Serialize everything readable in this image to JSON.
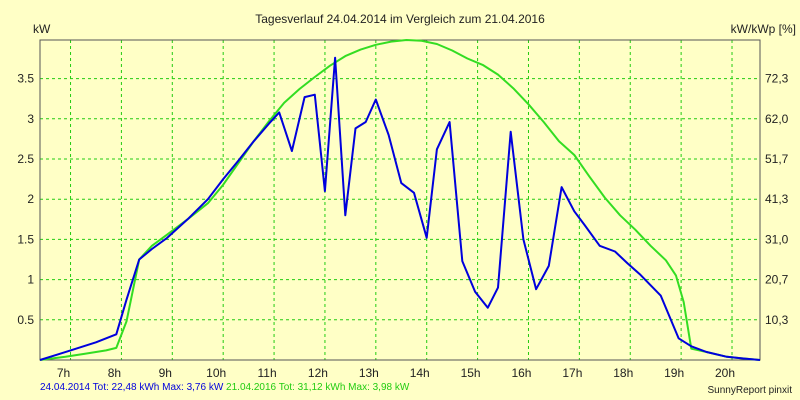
{
  "chart_data": {
    "type": "line",
    "title": "Tagesverlauf 24.04.2014 im Vergleich zum 21.04.2016",
    "ylabel_left": "kW",
    "ylabel_right": "kW/kWp [%]",
    "xlim": [
      6.4,
      20.55
    ],
    "ylim": [
      0,
      3.98
    ],
    "x_ticks": [
      7,
      8,
      9,
      10,
      11,
      12,
      13,
      14,
      15,
      16,
      17,
      18,
      19,
      20
    ],
    "x_tick_labels": [
      "7h",
      "8h",
      "9h",
      "10h",
      "11h",
      "12h",
      "13h",
      "14h",
      "15h",
      "16h",
      "17h",
      "18h",
      "19h",
      "20h"
    ],
    "y_ticks_left": [
      0.5,
      1,
      1.5,
      2,
      2.5,
      3,
      3.5
    ],
    "y_tick_labels_left": [
      "0.5",
      "1",
      "1.5",
      "2",
      "2.5",
      "3",
      "3.5"
    ],
    "y_ticks_right": [
      0.5,
      1,
      1.5,
      2,
      2.5,
      3,
      3.5
    ],
    "y_tick_labels_right": [
      "10,3",
      "20,7",
      "31,0",
      "41,3",
      "51,7",
      "62,0",
      "72,3"
    ],
    "grid": true,
    "series": [
      {
        "color": "#0000dd",
        "x": [
          6.4,
          6.75,
          7.0,
          7.5,
          7.9,
          8.1,
          8.35,
          8.6,
          8.9,
          9.3,
          9.7,
          10.0,
          10.3,
          10.6,
          10.9,
          11.1,
          11.35,
          11.6,
          11.8,
          12.0,
          12.2,
          12.4,
          12.6,
          12.8,
          13.0,
          13.25,
          13.5,
          13.75,
          14.0,
          14.2,
          14.45,
          14.7,
          14.95,
          15.2,
          15.4,
          15.65,
          15.9,
          16.15,
          16.4,
          16.65,
          16.9,
          17.1,
          17.4,
          17.7,
          17.95,
          18.2,
          18.6,
          18.95,
          19.2,
          19.5,
          19.9,
          20.2,
          20.55
        ],
        "y": [
          0.0,
          0.07,
          0.12,
          0.22,
          0.32,
          0.75,
          1.25,
          1.38,
          1.52,
          1.75,
          2.0,
          2.25,
          2.48,
          2.72,
          2.94,
          3.08,
          2.6,
          3.27,
          3.3,
          2.1,
          3.76,
          1.8,
          2.88,
          2.96,
          3.24,
          2.8,
          2.2,
          2.08,
          1.52,
          2.62,
          2.96,
          1.23,
          0.85,
          0.65,
          0.9,
          2.84,
          1.5,
          0.88,
          1.17,
          2.15,
          1.85,
          1.68,
          1.42,
          1.35,
          1.2,
          1.06,
          0.8,
          0.27,
          0.17,
          0.1,
          0.04,
          0.02,
          0.0
        ]
      },
      {
        "color": "#33dd22",
        "x": [
          6.4,
          6.9,
          7.3,
          7.7,
          7.9,
          8.1,
          8.35,
          8.6,
          8.9,
          9.3,
          9.7,
          10.0,
          10.3,
          10.6,
          10.9,
          11.2,
          11.5,
          11.8,
          12.1,
          12.4,
          12.7,
          13.0,
          13.3,
          13.6,
          13.9,
          14.2,
          14.5,
          14.8,
          15.1,
          15.4,
          15.7,
          16.0,
          16.3,
          16.6,
          16.9,
          17.2,
          17.5,
          17.8,
          18.1,
          18.4,
          18.7,
          18.9,
          19.05,
          19.2,
          19.5,
          19.9,
          20.2,
          20.55
        ],
        "y": [
          0.0,
          0.04,
          0.08,
          0.12,
          0.15,
          0.48,
          1.25,
          1.42,
          1.56,
          1.75,
          1.95,
          2.18,
          2.45,
          2.72,
          2.97,
          3.2,
          3.37,
          3.52,
          3.66,
          3.78,
          3.86,
          3.92,
          3.96,
          3.98,
          3.97,
          3.93,
          3.85,
          3.75,
          3.67,
          3.55,
          3.38,
          3.18,
          2.96,
          2.72,
          2.55,
          2.28,
          2.02,
          1.8,
          1.62,
          1.42,
          1.24,
          1.05,
          0.72,
          0.14,
          0.1,
          0.04,
          0.02,
          0.0
        ]
      }
    ],
    "footer": {
      "series1_label": "24.04.2014 Tot: 22,48 kWh Max: 3,76 kW",
      "series2_label": "21.04.2016 Tot: 31,12 kWh Max: 3,98 kW",
      "source": "SunnyReport pinxit"
    }
  }
}
